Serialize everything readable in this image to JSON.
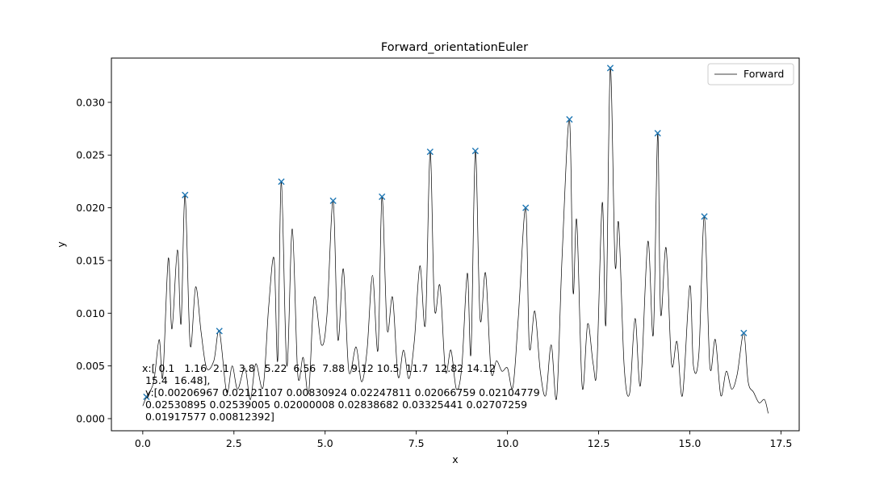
{
  "chart_data": {
    "type": "line",
    "title": "Forward_orientationEuler",
    "xlabel": "x",
    "ylabel": "y",
    "xlim": [
      -0.86,
      18.0
    ],
    "ylim": [
      -0.00115,
      0.0342
    ],
    "xticks": [
      0.0,
      2.5,
      5.0,
      7.5,
      10.0,
      12.5,
      15.0,
      17.5
    ],
    "xtick_labels": [
      "0.0",
      "2.5",
      "5.0",
      "7.5",
      "10.0",
      "12.5",
      "15.0",
      "17.5"
    ],
    "yticks": [
      0.0,
      0.005,
      0.01,
      0.015,
      0.02,
      0.025,
      0.03
    ],
    "ytick_labels": [
      "0.000",
      "0.005",
      "0.010",
      "0.015",
      "0.020",
      "0.025",
      "0.030"
    ],
    "grid": false,
    "legend": {
      "position": "top-right",
      "entries": [
        "Forward"
      ]
    },
    "series": [
      {
        "name": "Forward",
        "color": "#000000",
        "x": [
          0.0,
          0.1,
          0.3,
          0.45,
          0.55,
          0.7,
          0.8,
          0.95,
          1.05,
          1.16,
          1.3,
          1.45,
          1.6,
          1.75,
          1.95,
          2.1,
          2.3,
          2.45,
          2.6,
          2.8,
          2.95,
          3.1,
          3.3,
          3.45,
          3.6,
          3.7,
          3.8,
          3.95,
          4.1,
          4.25,
          4.4,
          4.55,
          4.7,
          4.9,
          5.05,
          5.22,
          5.35,
          5.5,
          5.65,
          5.85,
          6.0,
          6.15,
          6.3,
          6.45,
          6.56,
          6.7,
          6.85,
          7.0,
          7.15,
          7.3,
          7.45,
          7.6,
          7.75,
          7.88,
          8.0,
          8.15,
          8.3,
          8.45,
          8.6,
          8.75,
          8.9,
          9.0,
          9.12,
          9.25,
          9.4,
          9.55,
          9.7,
          9.85,
          10.0,
          10.15,
          10.3,
          10.5,
          10.6,
          10.75,
          10.9,
          11.05,
          11.2,
          11.35,
          11.5,
          11.7,
          11.8,
          11.9,
          12.05,
          12.2,
          12.35,
          12.45,
          12.6,
          12.7,
          12.82,
          12.95,
          13.05,
          13.2,
          13.35,
          13.5,
          13.65,
          13.85,
          14.0,
          14.12,
          14.2,
          14.35,
          14.5,
          14.65,
          14.8,
          15.0,
          15.1,
          15.25,
          15.4,
          15.55,
          15.7,
          15.85,
          16.0,
          16.15,
          16.3,
          16.48,
          16.6,
          16.75,
          16.9,
          17.05,
          17.15
        ],
        "values": [
          0.0012,
          0.00206967,
          0.0035,
          0.0075,
          0.004,
          0.0152,
          0.0085,
          0.016,
          0.009,
          0.02121107,
          0.007,
          0.0125,
          0.0082,
          0.0048,
          0.0055,
          0.00830924,
          0.0025,
          0.005,
          0.0028,
          0.0048,
          0.0018,
          0.0052,
          0.003,
          0.0105,
          0.0152,
          0.0055,
          0.02247811,
          0.005,
          0.018,
          0.0042,
          0.0058,
          0.0025,
          0.0115,
          0.007,
          0.0098,
          0.02066759,
          0.0075,
          0.0142,
          0.0045,
          0.0068,
          0.0035,
          0.0065,
          0.0136,
          0.0065,
          0.02104779,
          0.0085,
          0.0115,
          0.004,
          0.0065,
          0.0038,
          0.0075,
          0.0145,
          0.009,
          0.02530895,
          0.0105,
          0.0126,
          0.0045,
          0.0065,
          0.0028,
          0.005,
          0.0138,
          0.0062,
          0.02539005,
          0.0095,
          0.0138,
          0.0045,
          0.0055,
          0.0045,
          0.0048,
          0.003,
          0.0097,
          0.02000008,
          0.0068,
          0.0102,
          0.0045,
          0.0022,
          0.007,
          0.002,
          0.0155,
          0.02838682,
          0.012,
          0.0188,
          0.003,
          0.009,
          0.0052,
          0.0048,
          0.0205,
          0.009,
          0.03325441,
          0.0147,
          0.0185,
          0.005,
          0.0024,
          0.0095,
          0.0032,
          0.0168,
          0.008,
          0.02707259,
          0.01,
          0.0162,
          0.0052,
          0.0073,
          0.0022,
          0.0126,
          0.005,
          0.0062,
          0.01917577,
          0.005,
          0.0075,
          0.0022,
          0.0045,
          0.0028,
          0.0042,
          0.00812392,
          0.0035,
          0.0025,
          0.0015,
          0.0018,
          0.0005
        ]
      },
      {
        "name": "peaks",
        "marker": "x",
        "color": "#1f77b4",
        "x": [
          0.1,
          1.16,
          2.1,
          3.8,
          5.22,
          6.56,
          7.88,
          9.12,
          10.5,
          11.7,
          12.82,
          14.12,
          15.4,
          16.48
        ],
        "values": [
          0.00206967,
          0.02121107,
          0.00830924,
          0.02247811,
          0.02066759,
          0.02104779,
          0.02530895,
          0.02539005,
          0.02000008,
          0.02838682,
          0.03325441,
          0.02707259,
          0.01917577,
          0.00812392
        ]
      }
    ],
    "annotation_lines": [
      "x:[ 0.1   1.16  2.1   3.8   5.22  6.56  7.88  9.12 10.5  11.7  12.82 14.12",
      " 15.4  16.48],",
      " y:[0.00206967 0.02121107 0.00830924 0.02247811 0.02066759 0.02104779",
      " 0.02530895 0.02539005 0.02000008 0.02838682 0.03325441 0.02707259",
      " 0.01917577 0.00812392]"
    ]
  }
}
